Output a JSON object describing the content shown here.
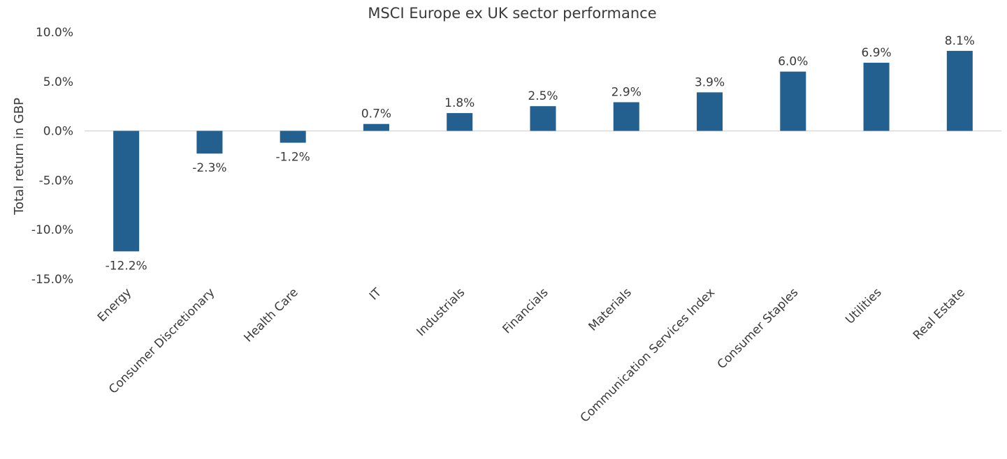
{
  "chart_data": {
    "type": "bar",
    "title": "MSCI Europe ex UK sector performance",
    "xlabel": "",
    "ylabel": "Total return in GBP",
    "ylim": [
      -15,
      10
    ],
    "yticks": [
      10,
      5,
      0,
      -5,
      -10,
      -15
    ],
    "ytick_labels": [
      "10.0%",
      "5.0%",
      "0.0%",
      "-5.0%",
      "-10.0%",
      "-15.0%"
    ],
    "categories": [
      "Energy",
      "Consumer Discretionary",
      "Health Care",
      "IT",
      "Industrials",
      "Financials",
      "Materials",
      "Communication Services Index",
      "Consumer Staples",
      "Utilities",
      "Real Estate"
    ],
    "values": [
      -12.2,
      -2.3,
      -1.2,
      0.7,
      1.8,
      2.5,
      2.9,
      3.9,
      6.0,
      6.9,
      8.1
    ],
    "value_labels": [
      "-12.2%",
      "-2.3%",
      "-1.2%",
      "0.7%",
      "1.8%",
      "2.5%",
      "2.9%",
      "3.9%",
      "6.0%",
      "6.9%",
      "8.1%"
    ],
    "bar_color": "#23608f",
    "zero_line_color": "#d9d9d9",
    "grid": false,
    "legend": "none"
  }
}
